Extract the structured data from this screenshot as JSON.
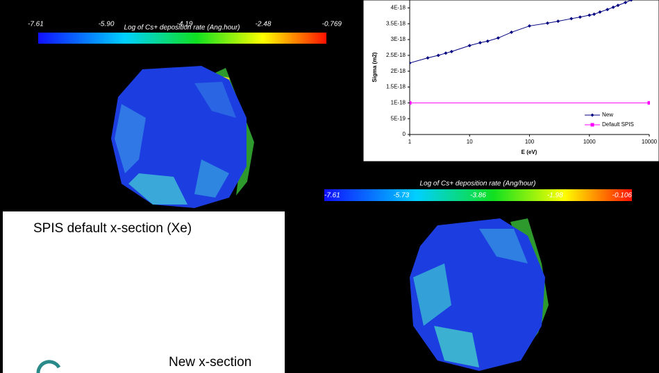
{
  "panels": [
    {
      "colorbar_title": "Log of Cs+ deposition rate (Ang.hour)",
      "colorbar_labels": [
        "-7.61",
        "-5.90",
        "-4.19",
        "-2.48",
        "-0.769"
      ],
      "caption": "SPIS default x-section (Xe)"
    },
    {
      "colorbar_title": "Log of Cs+ deposition rate (Ang/hour)",
      "colorbar_labels": [
        "-7.61",
        "-5.73",
        "-3.86",
        "-1.98",
        "-0.106"
      ],
      "caption": "New x-section"
    }
  ],
  "chart_data": {
    "type": "line",
    "xlabel": "E (eV)",
    "ylabel": "Sigma (m2)",
    "xscale": "log",
    "xlim": [
      1,
      10000
    ],
    "xticks": [
      1,
      10,
      100,
      1000,
      10000
    ],
    "ylim": [
      0,
      4.25e-18
    ],
    "yticks": [
      0,
      {
        "value": 5e-19,
        "label": "5E-19"
      },
      {
        "value": 1e-18,
        "label": "1E-18"
      },
      {
        "value": 1.5e-18,
        "label": "1.5E-18"
      },
      {
        "value": 2e-18,
        "label": "2E-18"
      },
      {
        "value": 2.5e-18,
        "label": "2.5E-18"
      },
      {
        "value": 3e-18,
        "label": "3E-18"
      },
      {
        "value": 3.5e-18,
        "label": "3.5E-18"
      },
      {
        "value": 4e-18,
        "label": "4E-18"
      }
    ],
    "grid": false,
    "legend": "lower right",
    "series": [
      {
        "name": "New",
        "color": "#000080",
        "marker": "diamond",
        "x": [
          1,
          2,
          3,
          4,
          5,
          10,
          15,
          20,
          30,
          50,
          100,
          200,
          300,
          500,
          700,
          1000,
          1200,
          1500,
          2000,
          2500,
          3000,
          4000,
          5000
        ],
        "values": [
          2.26e-18,
          2.42e-18,
          2.5e-18,
          2.57e-18,
          2.62e-18,
          2.81e-18,
          2.9e-18,
          2.95e-18,
          3.05e-18,
          3.23e-18,
          3.43e-18,
          3.52e-18,
          3.58e-18,
          3.66e-18,
          3.71e-18,
          3.77e-18,
          3.8e-18,
          3.87e-18,
          3.95e-18,
          4.02e-18,
          4.08e-18,
          4.17e-18,
          4.25e-18
        ]
      },
      {
        "name": "Default SPIS",
        "color": "#ff00ff",
        "marker": "square",
        "x": [
          1,
          10000
        ],
        "values": [
          1e-18,
          1e-18
        ]
      }
    ]
  }
}
